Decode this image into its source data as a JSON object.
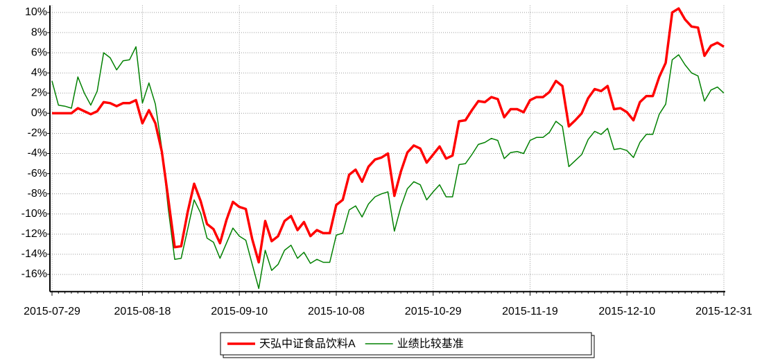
{
  "chart_data": {
    "type": "line",
    "categories": [
      "2015-07-29",
      null,
      null,
      null,
      null,
      null,
      null,
      null,
      null,
      null,
      null,
      null,
      null,
      null,
      "2015-08-18",
      null,
      null,
      null,
      null,
      null,
      null,
      null,
      null,
      null,
      null,
      null,
      null,
      null,
      null,
      "2015-09-10",
      null,
      null,
      null,
      null,
      null,
      null,
      null,
      null,
      null,
      null,
      null,
      null,
      null,
      null,
      "2015-10-08",
      null,
      null,
      null,
      null,
      null,
      null,
      null,
      null,
      null,
      null,
      null,
      null,
      null,
      null,
      "2015-10-29",
      null,
      null,
      null,
      null,
      null,
      null,
      null,
      null,
      null,
      null,
      null,
      null,
      null,
      null,
      "2015-11-19",
      null,
      null,
      null,
      null,
      null,
      null,
      null,
      null,
      null,
      null,
      null,
      null,
      null,
      null,
      "2015-12-10",
      null,
      null,
      null,
      null,
      null,
      null,
      null,
      null,
      null,
      null,
      null,
      null,
      null,
      null,
      "2015-12-31"
    ],
    "series": [
      {
        "name": "天弘中证食品饮料A",
        "color": "#ff0000",
        "values": [
          0,
          0,
          0,
          0,
          0.5,
          0.2,
          -0.1,
          0.2,
          1.1,
          1.0,
          0.7,
          1.0,
          1.0,
          1.3,
          -1.0,
          0.3,
          -1.0,
          -3.8,
          -8.5,
          -13.3,
          -13.2,
          -9.8,
          -7.0,
          -8.7,
          -11.0,
          -11.5,
          -12.9,
          -10.6,
          -8.8,
          -9.3,
          -9.5,
          -12.5,
          -14.8,
          -10.7,
          -12.7,
          -12.2,
          -10.7,
          -10.2,
          -11.6,
          -10.8,
          -12.2,
          -11.6,
          -11.9,
          -11.9,
          -9.1,
          -8.6,
          -6.1,
          -5.6,
          -6.8,
          -5.3,
          -4.6,
          -4.4,
          -4.0,
          -8.2,
          -5.8,
          -3.9,
          -3.2,
          -3.5,
          -4.9,
          -4.1,
          -3.3,
          -4.5,
          -4.2,
          -0.8,
          -0.7,
          0.3,
          1.2,
          1.1,
          1.6,
          1.4,
          -0.4,
          0.4,
          0.4,
          0.1,
          1.3,
          1.6,
          1.6,
          2.1,
          3.2,
          2.7,
          -1.3,
          -0.7,
          0.0,
          1.5,
          2.4,
          2.2,
          2.7,
          0.4,
          0.5,
          0.1,
          -0.7,
          1.1,
          1.7,
          1.7,
          3.6,
          5.0,
          10.0,
          10.4,
          9.3,
          8.6,
          8.5,
          5.7,
          6.7,
          7.0,
          6.6
        ]
      },
      {
        "name": "业绩比较基准",
        "color": "#008000",
        "values": [
          3.2,
          0.8,
          0.7,
          0.5,
          3.6,
          2.0,
          0.8,
          2.2,
          6.0,
          5.5,
          4.3,
          5.2,
          5.3,
          6.6,
          1.0,
          3.0,
          0.9,
          -3.5,
          -9.5,
          -14.5,
          -14.4,
          -11.5,
          -8.6,
          -9.9,
          -12.4,
          -12.8,
          -14.4,
          -12.9,
          -11.4,
          -12.2,
          -12.6,
          -15.0,
          -17.4,
          -13.6,
          -15.6,
          -15.0,
          -13.6,
          -13.1,
          -14.4,
          -13.8,
          -14.9,
          -14.5,
          -14.8,
          -14.8,
          -12.1,
          -11.9,
          -9.6,
          -9.2,
          -10.3,
          -9.0,
          -8.3,
          -8.0,
          -7.8,
          -11.7,
          -9.3,
          -7.5,
          -6.8,
          -7.1,
          -8.6,
          -7.8,
          -7.1,
          -8.3,
          -8.3,
          -5.1,
          -5.0,
          -4.1,
          -3.1,
          -2.9,
          -2.5,
          -2.7,
          -4.5,
          -3.9,
          -3.8,
          -4.0,
          -2.7,
          -2.4,
          -2.4,
          -1.9,
          -0.8,
          -1.3,
          -5.3,
          -4.7,
          -4.1,
          -2.6,
          -1.8,
          -2.1,
          -1.5,
          -3.6,
          -3.5,
          -3.7,
          -4.4,
          -2.9,
          -2.1,
          -2.1,
          -0.1,
          0.9,
          5.3,
          5.8,
          4.8,
          4.0,
          3.7,
          1.2,
          2.3,
          2.6,
          2.0
        ]
      }
    ],
    "ylim": [
      -17.7,
      10.7
    ],
    "yticks": [
      {
        "value": -16,
        "label": "-16%"
      },
      {
        "value": -14,
        "label": "-14%"
      },
      {
        "value": -12,
        "label": "-12%"
      },
      {
        "value": -10,
        "label": "-10%"
      },
      {
        "value": -8,
        "label": "-8%"
      },
      {
        "value": -6,
        "label": "-6%"
      },
      {
        "value": -4,
        "label": "-4%"
      },
      {
        "value": -2,
        "label": "-2%"
      },
      {
        "value": 0,
        "label": "0%"
      },
      {
        "value": 2,
        "label": "2%"
      },
      {
        "value": 4,
        "label": "4%"
      },
      {
        "value": 6,
        "label": "6%"
      },
      {
        "value": 8,
        "label": "8%"
      },
      {
        "value": 10,
        "label": "10%"
      }
    ],
    "grid": true,
    "legend": "bottom"
  }
}
